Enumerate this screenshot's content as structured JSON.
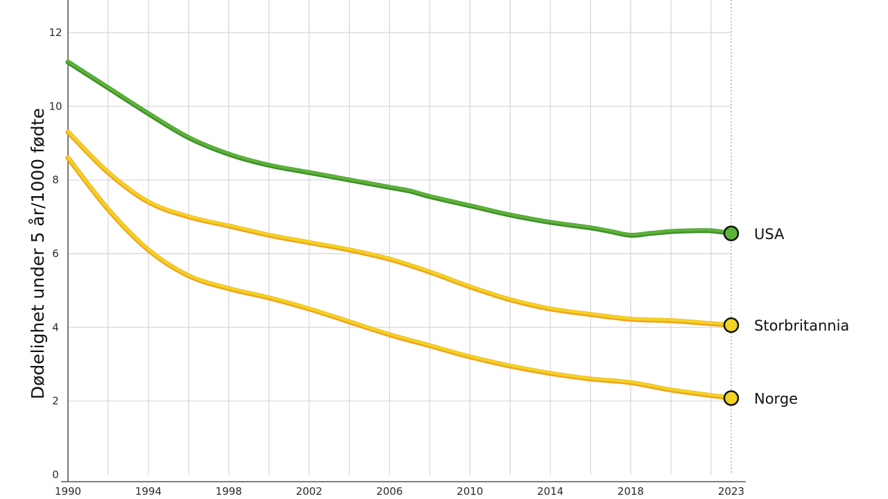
{
  "chart_data": {
    "type": "line",
    "ylabel": "Dødelighet under 5 år/1000 fødte",
    "xlim": [
      1990,
      2023
    ],
    "ylim": [
      0,
      12
    ],
    "x_ticks": [
      "1990",
      "1994",
      "1998",
      "2002",
      "2006",
      "2010",
      "2014",
      "2018",
      "2023"
    ],
    "y_ticks": [
      "0",
      "2",
      "4",
      "6",
      "8",
      "10",
      "12"
    ],
    "grid": true,
    "series": [
      {
        "name": "USA",
        "color": "#5cb338",
        "x": [
          1990,
          1992,
          1994,
          1996,
          1998,
          2000,
          2002,
          2004,
          2006,
          2007,
          2008,
          2010,
          2012,
          2014,
          2016,
          2017,
          2018,
          2019,
          2020,
          2021,
          2022,
          2023
        ],
        "y": [
          11.2,
          10.5,
          9.8,
          9.15,
          8.7,
          8.4,
          8.2,
          8.0,
          7.8,
          7.7,
          7.55,
          7.3,
          7.05,
          6.85,
          6.7,
          6.6,
          6.5,
          6.55,
          6.6,
          6.62,
          6.62,
          6.55
        ]
      },
      {
        "name": "Storbritannia",
        "color": "#f2d321",
        "x": [
          1990,
          1992,
          1994,
          1996,
          1998,
          2000,
          2002,
          2004,
          2006,
          2008,
          2010,
          2012,
          2014,
          2016,
          2018,
          2020,
          2022,
          2023
        ],
        "y": [
          9.3,
          8.2,
          7.4,
          7.0,
          6.75,
          6.5,
          6.3,
          6.1,
          5.85,
          5.5,
          5.1,
          4.75,
          4.5,
          4.35,
          4.22,
          4.18,
          4.1,
          4.06
        ]
      },
      {
        "name": "Norge",
        "color": "#f2d321",
        "x": [
          1990,
          1992,
          1994,
          1996,
          1998,
          2000,
          2002,
          2004,
          2006,
          2008,
          2010,
          2012,
          2014,
          2016,
          2018,
          2020,
          2022,
          2023
        ],
        "y": [
          8.6,
          7.2,
          6.1,
          5.4,
          5.05,
          4.8,
          4.5,
          4.15,
          3.8,
          3.5,
          3.2,
          2.95,
          2.75,
          2.6,
          2.5,
          2.3,
          2.15,
          2.08
        ]
      }
    ]
  }
}
